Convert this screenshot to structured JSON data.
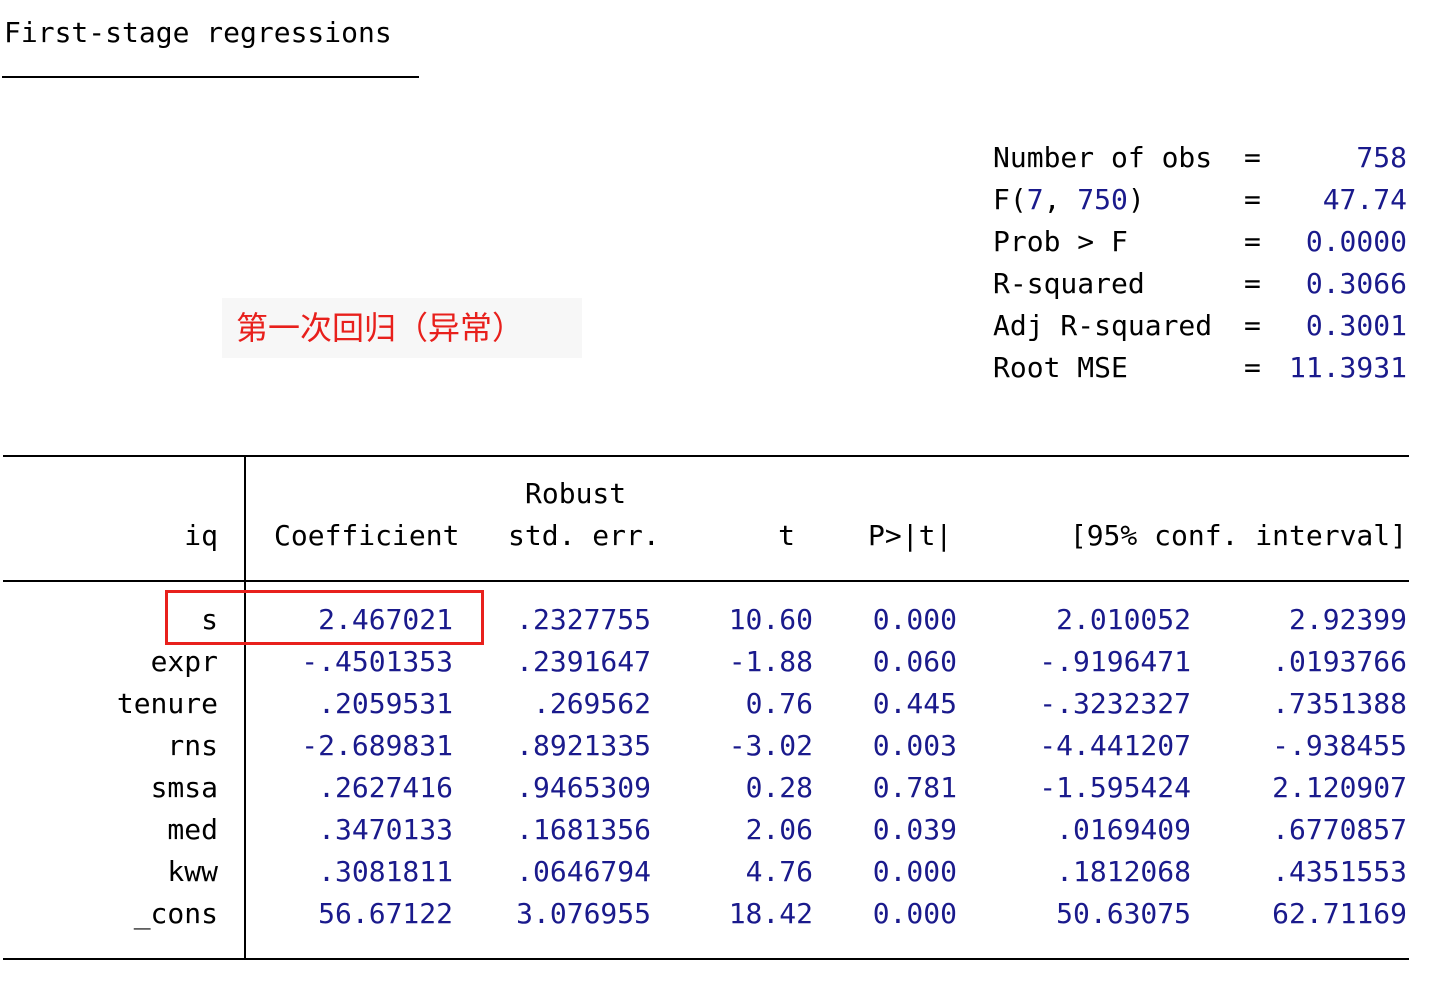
{
  "title": "First-stage regressions",
  "annotation": "第一次回归（异常）",
  "stats": [
    {
      "label": "Number of obs",
      "value": "758"
    },
    {
      "label": "F(7, 750)",
      "value": "47.74"
    },
    {
      "label": "Prob > F",
      "value": "0.0000"
    },
    {
      "label": "R-squared",
      "value": "0.3066"
    },
    {
      "label": "Adj R-squared",
      "value": "0.3001"
    },
    {
      "label": "Root MSE",
      "value": "11.3931"
    }
  ],
  "f_df1": "7",
  "f_df2": "750",
  "table": {
    "depvar": "iq",
    "header_top": "Robust",
    "headers": [
      "Coefficient",
      "std. err.",
      "t",
      "P>|t|",
      "[95% conf. interval]"
    ],
    "rows": [
      {
        "var": "s",
        "vals": [
          "2.467021",
          ".2327755",
          "10.60",
          "0.000",
          "2.010052",
          "2.92399"
        ]
      },
      {
        "var": "expr",
        "vals": [
          "-.4501353",
          ".2391647",
          "-1.88",
          "0.060",
          "-.9196471",
          ".0193766"
        ]
      },
      {
        "var": "tenure",
        "vals": [
          ".2059531",
          ".269562",
          "0.76",
          "0.445",
          "-.3232327",
          ".7351388"
        ]
      },
      {
        "var": "rns",
        "vals": [
          "-2.689831",
          ".8921335",
          "-3.02",
          "0.003",
          "-4.441207",
          "-.938455"
        ]
      },
      {
        "var": "smsa",
        "vals": [
          ".2627416",
          ".9465309",
          "0.28",
          "0.781",
          "-1.595424",
          "2.120907"
        ]
      },
      {
        "var": "med",
        "vals": [
          ".3470133",
          ".1681356",
          "2.06",
          "0.039",
          ".0169409",
          ".6770857"
        ]
      },
      {
        "var": "kww",
        "vals": [
          ".3081811",
          ".0646794",
          "4.76",
          "0.000",
          ".1812068",
          ".4351553"
        ]
      },
      {
        "var": "_cons",
        "vals": [
          "56.67122",
          "3.076955",
          "18.42",
          "0.000",
          "50.63075",
          "62.71169"
        ]
      }
    ]
  },
  "colors": {
    "value": "#1a1a8c",
    "annotation": "#e8201c",
    "highlight_box": "#e8201c"
  }
}
